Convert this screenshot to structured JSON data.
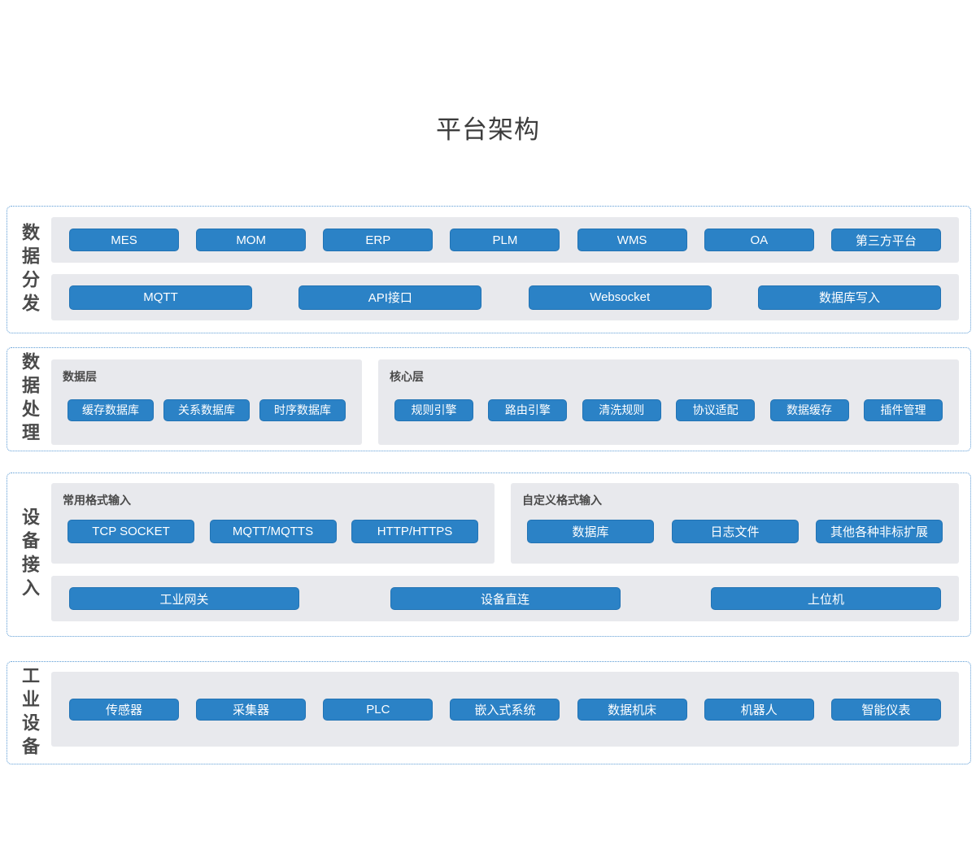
{
  "page": {
    "title": "平台架构"
  },
  "colors": {
    "node_blue": "#2b82c6",
    "node_border_blue": "#2273b4",
    "panel_gray": "#e8e9ed",
    "dotted_border_blue": "#5b9bd5",
    "label_gray": "#4a4a4a"
  },
  "sections": [
    {
      "label": "数据分发",
      "rows": [
        {
          "buttons": [
            "MES",
            "MOM",
            "ERP",
            "PLM",
            "WMS",
            "OA",
            "第三方平台"
          ]
        },
        {
          "buttons": [
            "MQTT",
            "API接口",
            "Websocket",
            "数据库写入"
          ]
        }
      ]
    },
    {
      "label": "数据处理",
      "groups": [
        {
          "title": "数据层",
          "buttons": [
            "缓存数据库",
            "关系数据库",
            "时序数据库"
          ]
        },
        {
          "title": "核心层",
          "buttons": [
            "规则引擎",
            "路由引擎",
            "清洗规则",
            "协议适配",
            "数据缓存",
            "插件管理"
          ]
        }
      ]
    },
    {
      "label": "设备接入",
      "groups": [
        {
          "title": "常用格式输入",
          "buttons": [
            "TCP SOCKET",
            "MQTT/MQTTS",
            "HTTP/HTTPS"
          ]
        },
        {
          "title": "自定义格式输入",
          "buttons": [
            "数据库",
            "日志文件",
            "其他各种非标扩展"
          ]
        }
      ],
      "rows": [
        {
          "buttons": [
            "工业网关",
            "设备直连",
            "上位机"
          ]
        }
      ]
    },
    {
      "label": "工业设备",
      "rows": [
        {
          "buttons": [
            "传感器",
            "采集器",
            "PLC",
            "嵌入式系统",
            "数据机床",
            "机器人",
            "智能仪表"
          ]
        }
      ]
    }
  ]
}
